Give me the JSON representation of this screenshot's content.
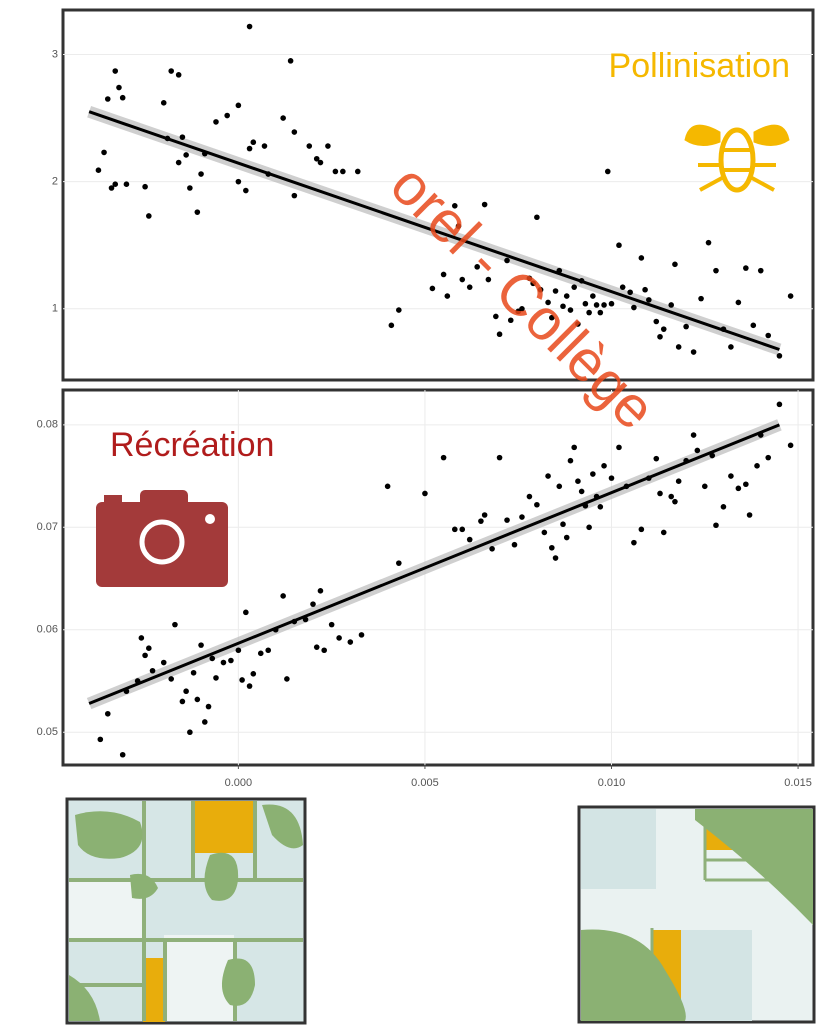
{
  "chart_data": [
    {
      "type": "scatter",
      "annotation": "Pollinisation",
      "annotation_color": "#f5b800",
      "color": "#000000",
      "grid": true,
      "xlim": [
        -0.0047,
        0.0154
      ],
      "ylim": [
        0.44,
        3.35
      ],
      "yticks": [
        1,
        2,
        3
      ],
      "fit": {
        "x": [
          -0.004,
          0.0145
        ],
        "y": [
          2.55,
          0.68
        ]
      },
      "x": [
        -0.00375,
        -0.0034,
        -0.0033,
        -0.0032,
        -0.0031,
        -0.0035,
        -0.0036,
        -0.003,
        -0.0033,
        -0.0025,
        -0.0024,
        -0.002,
        -0.0019,
        -0.0018,
        -0.0016,
        -0.0015,
        -0.0016,
        -0.0014,
        -0.0013,
        -0.001,
        -0.0011,
        -0.0009,
        -0.0006,
        -0.0003,
        0,
        0,
        0.0002,
        0.0003,
        0.0004,
        0.0003,
        0.0007,
        0.0008,
        0.0012,
        0.0014,
        0.0015,
        0.0015,
        0.0019,
        0.0021,
        0.0022,
        0.0024,
        0.0026,
        0.0028,
        0.0032,
        0.0041,
        0.0043,
        0.0052,
        0.0055,
        0.0056,
        0.0058,
        0.0059,
        0.006,
        0.0062,
        0.0064,
        0.0066,
        0.0067,
        0.0069,
        0.007,
        0.0072,
        0.0073,
        0.0075,
        0.0076,
        0.0078,
        0.0079,
        0.008,
        0.0081,
        0.0083,
        0.0084,
        0.0085,
        0.0086,
        0.0087,
        0.0088,
        0.0089,
        0.009,
        0.0091,
        0.0092,
        0.0093,
        0.0094,
        0.0095,
        0.0096,
        0.0097,
        0.0098,
        0.0099,
        0.01,
        0.0102,
        0.0103,
        0.0105,
        0.0106,
        0.0108,
        0.0109,
        0.011,
        0.0112,
        0.0113,
        0.0114,
        0.0116,
        0.0117,
        0.0118,
        0.012,
        0.0122,
        0.0124,
        0.0126,
        0.0128,
        0.013,
        0.0132,
        0.0134,
        0.0136,
        0.0138,
        0.014,
        0.0142,
        0.0145,
        0.0148
      ],
      "values": [
        2.09,
        1.95,
        2.87,
        2.74,
        2.66,
        2.65,
        2.23,
        1.98,
        1.98,
        1.96,
        1.73,
        2.62,
        2.34,
        2.87,
        2.84,
        2.35,
        2.15,
        2.21,
        1.95,
        2.06,
        1.76,
        2.22,
        2.47,
        2.52,
        2.6,
        2.0,
        1.93,
        2.26,
        2.31,
        3.22,
        2.28,
        2.06,
        2.5,
        2.95,
        2.39,
        1.89,
        2.28,
        2.18,
        2.15,
        2.28,
        2.08,
        2.08,
        2.08,
        0.87,
        0.99,
        1.16,
        1.27,
        1.1,
        1.81,
        1.65,
        1.23,
        1.17,
        1.33,
        1.82,
        1.23,
        0.94,
        0.8,
        1.38,
        0.91,
        0.98,
        1.0,
        1.24,
        1.2,
        1.72,
        1.15,
        1.05,
        0.93,
        1.14,
        1.3,
        1.02,
        1.1,
        0.99,
        1.17,
        0.88,
        1.22,
        1.04,
        0.97,
        1.1,
        1.03,
        0.97,
        1.03,
        2.08,
        1.04,
        1.5,
        1.17,
        1.13,
        1.01,
        1.4,
        1.15,
        1.07,
        0.9,
        0.78,
        0.84,
        1.03,
        1.35,
        0.7,
        0.86,
        0.66,
        1.08,
        1.52,
        1.3,
        0.84,
        0.7,
        1.05,
        1.32,
        0.87,
        1.3,
        0.79,
        0.63,
        1.1
      ]
    },
    {
      "type": "scatter",
      "annotation": "Récréation",
      "annotation_color": "#b01c1c",
      "color": "#000000",
      "grid": true,
      "xlim": [
        -0.0047,
        0.0154
      ],
      "ylim": [
        0.0468,
        0.0834
      ],
      "xticks": [
        {
          "value": 0,
          "label": "0.000"
        },
        0.005,
        {
          "value": 0.01,
          "label": "0.010"
        },
        0.015
      ],
      "yticks": [
        0.05,
        0.06,
        0.07,
        0.08
      ],
      "fit": {
        "x": [
          -0.004,
          0.0145
        ],
        "y": [
          0.0528,
          0.08
        ]
      },
      "x": [
        -0.0037,
        -0.0035,
        -0.0031,
        -0.003,
        -0.0027,
        -0.0026,
        -0.0025,
        -0.0024,
        -0.0023,
        -0.002,
        -0.0018,
        -0.0017,
        -0.0015,
        -0.0014,
        -0.0013,
        -0.0012,
        -0.0011,
        -0.001,
        -0.0009,
        -0.0008,
        -0.0007,
        -0.0006,
        -0.0004,
        -0.0002,
        0,
        0.0001,
        0.0002,
        0.0003,
        0.0004,
        0.0006,
        0.0008,
        0.001,
        0.0012,
        0.0013,
        0.0015,
        0.0018,
        0.002,
        0.0021,
        0.0022,
        0.0023,
        0.0025,
        0.0027,
        0.003,
        0.0033,
        0.004,
        0.0043,
        0.005,
        0.0055,
        0.0058,
        0.006,
        0.0062,
        0.0065,
        0.0066,
        0.0068,
        0.007,
        0.0072,
        0.0074,
        0.0076,
        0.0078,
        0.008,
        0.0082,
        0.0083,
        0.0084,
        0.0085,
        0.0086,
        0.0087,
        0.0088,
        0.0089,
        0.009,
        0.0091,
        0.0092,
        0.0093,
        0.0094,
        0.0095,
        0.0096,
        0.0097,
        0.0098,
        0.01,
        0.0102,
        0.0104,
        0.0106,
        0.0108,
        0.011,
        0.0112,
        0.0113,
        0.0114,
        0.0116,
        0.0117,
        0.0118,
        0.012,
        0.0122,
        0.0123,
        0.0125,
        0.0127,
        0.0128,
        0.013,
        0.0132,
        0.0134,
        0.0136,
        0.0137,
        0.0139,
        0.014,
        0.0142,
        0.0145,
        0.0148
      ],
      "values": [
        0.0493,
        0.0518,
        0.0478,
        0.054,
        0.055,
        0.0592,
        0.0575,
        0.0582,
        0.056,
        0.0568,
        0.0552,
        0.0605,
        0.053,
        0.054,
        0.05,
        0.0558,
        0.0532,
        0.0585,
        0.051,
        0.0525,
        0.0572,
        0.0553,
        0.0568,
        0.057,
        0.058,
        0.0551,
        0.0617,
        0.0545,
        0.0557,
        0.0577,
        0.058,
        0.06,
        0.0633,
        0.0552,
        0.0608,
        0.061,
        0.0625,
        0.0583,
        0.0638,
        0.058,
        0.0605,
        0.0592,
        0.0588,
        0.0595,
        0.074,
        0.0665,
        0.0733,
        0.0768,
        0.0698,
        0.0698,
        0.0688,
        0.0706,
        0.0712,
        0.0679,
        0.0768,
        0.0707,
        0.0683,
        0.071,
        0.073,
        0.0722,
        0.0695,
        0.075,
        0.068,
        0.067,
        0.074,
        0.0703,
        0.069,
        0.0765,
        0.0778,
        0.0745,
        0.0735,
        0.0721,
        0.07,
        0.0752,
        0.073,
        0.072,
        0.076,
        0.0748,
        0.0778,
        0.074,
        0.0685,
        0.0698,
        0.0748,
        0.0767,
        0.0733,
        0.0695,
        0.073,
        0.0725,
        0.0745,
        0.0765,
        0.079,
        0.0775,
        0.074,
        0.077,
        0.0702,
        0.072,
        0.075,
        0.0738,
        0.0742,
        0.0712,
        0.076,
        0.079,
        0.0768,
        0.082,
        0.078
      ]
    }
  ],
  "watermark": "orel - Collège"
}
